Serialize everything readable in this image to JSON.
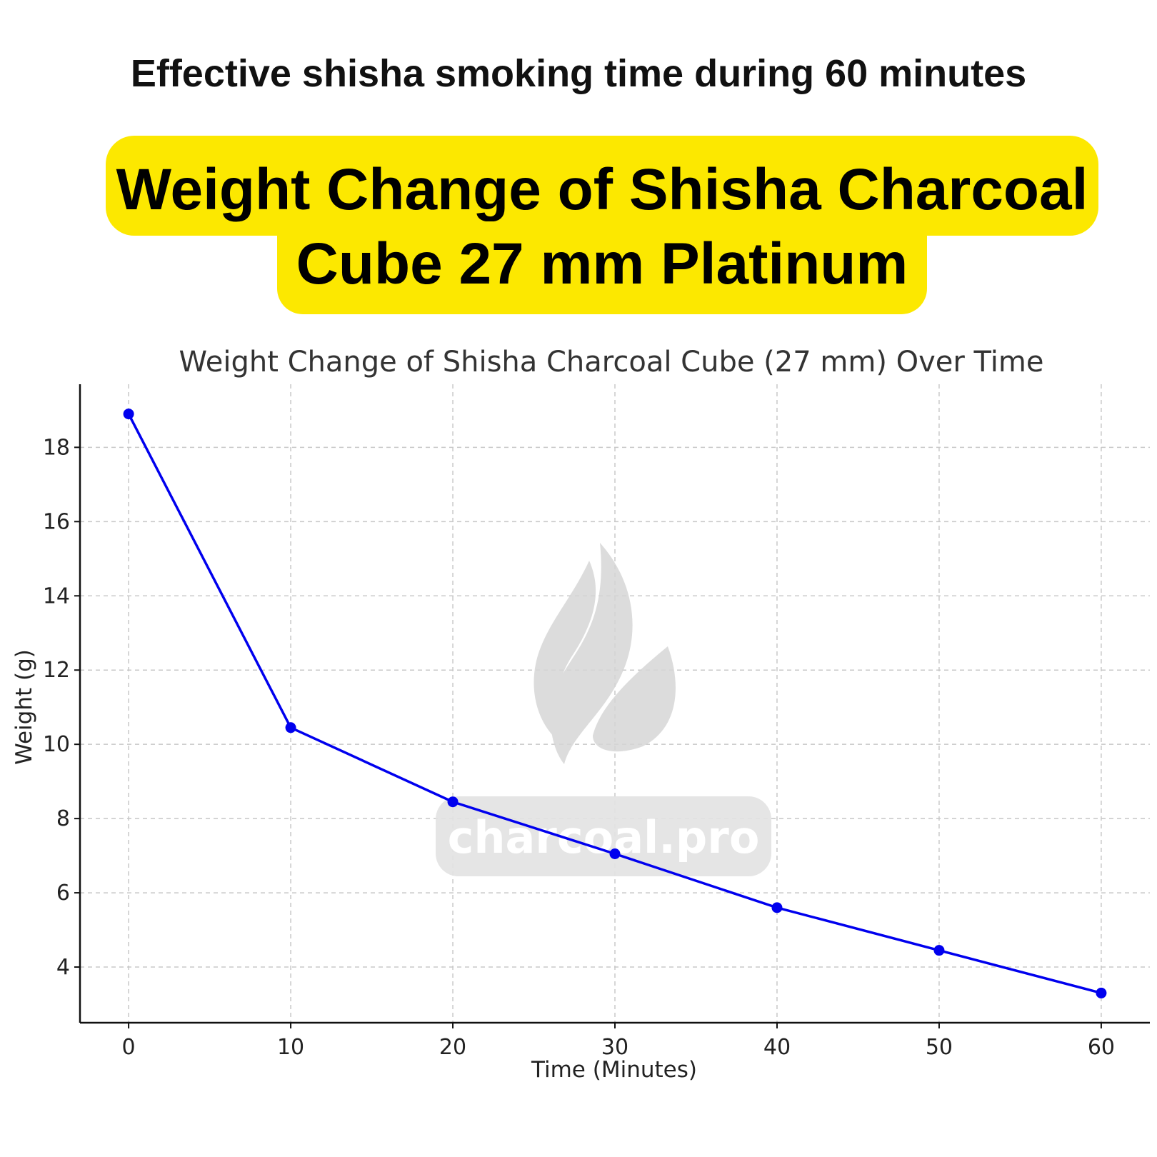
{
  "header": {
    "headline": "Effective shisha smoking time during 60 minutes",
    "banner_line1": "Weight Change of Shisha Charcoal",
    "banner_line2": "Cube 27 mm Platinum",
    "banner_color": "#fce800"
  },
  "watermark": {
    "text": "charcoal.pro",
    "icon": "flame-logo-icon"
  },
  "chart_data": {
    "type": "line",
    "title": "Weight Change of Shisha Charcoal Cube (27 mm) Over Time",
    "xlabel": "Time (Minutes)",
    "ylabel": "Weight (g)",
    "x": [
      0,
      10,
      20,
      30,
      40,
      50,
      60
    ],
    "series": [
      {
        "values": [
          18.9,
          10.45,
          8.45,
          7.05,
          5.6,
          4.45,
          3.3
        ],
        "color": "#0000ee",
        "marker": "circle"
      }
    ],
    "xticks": [
      0,
      10,
      20,
      30,
      40,
      50,
      60
    ],
    "yticks": [
      4,
      6,
      8,
      10,
      12,
      14,
      16,
      18
    ],
    "xlim": [
      -3,
      63
    ],
    "ylim": [
      2.5,
      19.7
    ],
    "grid": true,
    "grid_style": "dashed"
  }
}
